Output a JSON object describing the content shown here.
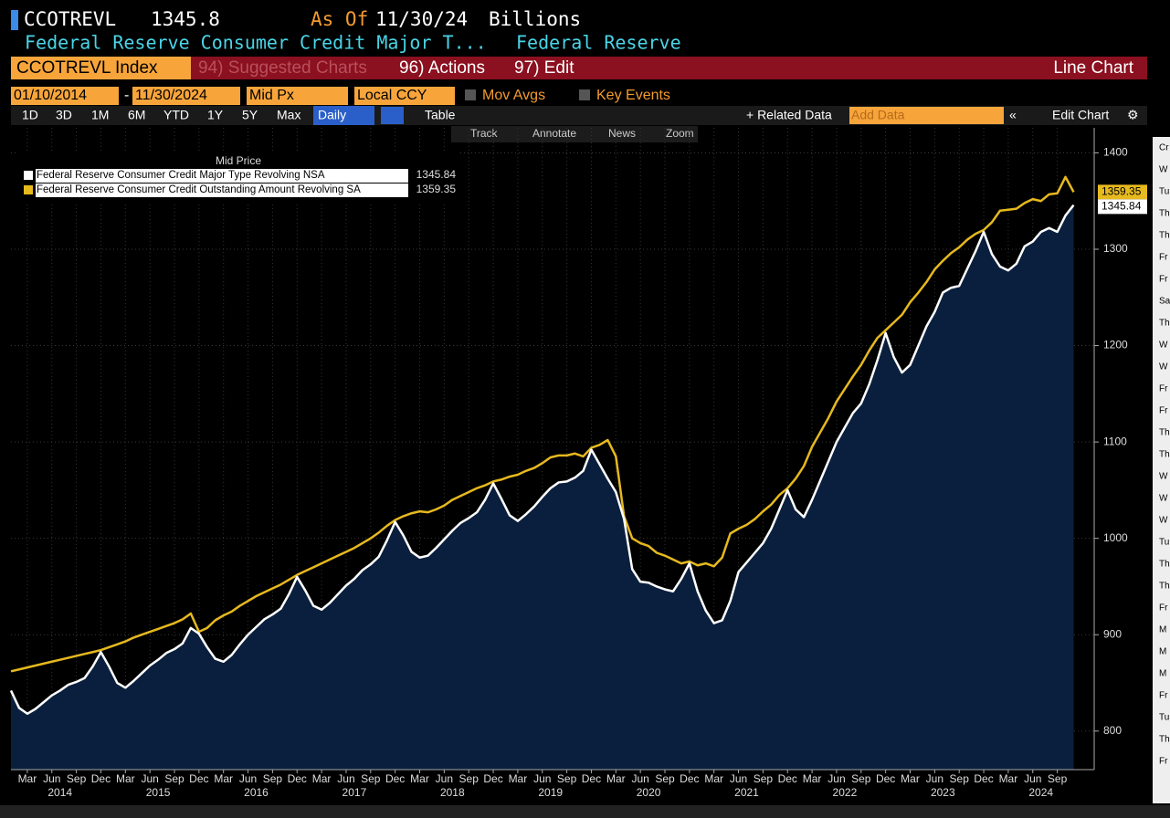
{
  "header": {
    "ticker": "CCOTREVL",
    "price": "1345.8",
    "as_of_label": "As Of",
    "as_of_date": "11/30/24",
    "units": "Billions",
    "name": "Federal Reserve Consumer Credit Major T...",
    "source": "Federal Reserve"
  },
  "menu": {
    "security": "CCOTREVL Index",
    "suggested": "94) Suggested Charts",
    "actions": "96) Actions",
    "edit": "97) Edit",
    "chart_type": "Line Chart"
  },
  "controls": {
    "start_date": "01/10/2014",
    "end_date": "11/30/2024",
    "field": "Mid Px",
    "currency": "Local CCY",
    "mov_avgs": "Mov Avgs",
    "key_events": "Key Events"
  },
  "toolbar": {
    "periods": [
      "1D",
      "3D",
      "1M",
      "6M",
      "YTD",
      "1Y",
      "5Y",
      "Max"
    ],
    "frequency": "Daily",
    "table": "Table",
    "related": "+ Related Data",
    "add_data": "Add Data",
    "edit_chart": "Edit Chart"
  },
  "tools": [
    "Track",
    "Annotate",
    "News",
    "Zoom"
  ],
  "side_panel": [
    "Cr",
    "W",
    "Tu",
    "Th",
    "Th",
    "Fr",
    "Fr",
    "Sa",
    "Th",
    "W",
    "W",
    "Fr",
    "Fr",
    "Th",
    "Th",
    "W",
    "W",
    "W",
    "Tu",
    "Th",
    "Th",
    "Fr",
    "M",
    "M",
    "M",
    "Fr",
    "Tu",
    "Th",
    "Fr"
  ],
  "chart_data": {
    "type": "line",
    "legend_title": "Mid Price",
    "x": [
      "2014-01",
      "2014-02",
      "2014-03",
      "2014-04",
      "2014-05",
      "2014-06",
      "2014-07",
      "2014-08",
      "2014-09",
      "2014-10",
      "2014-11",
      "2014-12",
      "2015-01",
      "2015-02",
      "2015-03",
      "2015-04",
      "2015-05",
      "2015-06",
      "2015-07",
      "2015-08",
      "2015-09",
      "2015-10",
      "2015-11",
      "2015-12",
      "2016-01",
      "2016-02",
      "2016-03",
      "2016-04",
      "2016-05",
      "2016-06",
      "2016-07",
      "2016-08",
      "2016-09",
      "2016-10",
      "2016-11",
      "2016-12",
      "2017-01",
      "2017-02",
      "2017-03",
      "2017-04",
      "2017-05",
      "2017-06",
      "2017-07",
      "2017-08",
      "2017-09",
      "2017-10",
      "2017-11",
      "2017-12",
      "2018-01",
      "2018-02",
      "2018-03",
      "2018-04",
      "2018-05",
      "2018-06",
      "2018-07",
      "2018-08",
      "2018-09",
      "2018-10",
      "2018-11",
      "2018-12",
      "2019-01",
      "2019-02",
      "2019-03",
      "2019-04",
      "2019-05",
      "2019-06",
      "2019-07",
      "2019-08",
      "2019-09",
      "2019-10",
      "2019-11",
      "2019-12",
      "2020-01",
      "2020-02",
      "2020-03",
      "2020-04",
      "2020-05",
      "2020-06",
      "2020-07",
      "2020-08",
      "2020-09",
      "2020-10",
      "2020-11",
      "2020-12",
      "2021-01",
      "2021-02",
      "2021-03",
      "2021-04",
      "2021-05",
      "2021-06",
      "2021-07",
      "2021-08",
      "2021-09",
      "2021-10",
      "2021-11",
      "2021-12",
      "2022-01",
      "2022-02",
      "2022-03",
      "2022-04",
      "2022-05",
      "2022-06",
      "2022-07",
      "2022-08",
      "2022-09",
      "2022-10",
      "2022-11",
      "2022-12",
      "2023-01",
      "2023-02",
      "2023-03",
      "2023-04",
      "2023-05",
      "2023-06",
      "2023-07",
      "2023-08",
      "2023-09",
      "2023-10",
      "2023-11",
      "2023-12",
      "2024-01",
      "2024-02",
      "2024-03",
      "2024-04",
      "2024-05",
      "2024-06",
      "2024-07",
      "2024-08",
      "2024-09",
      "2024-10",
      "2024-11"
    ],
    "series": [
      {
        "name": "Federal Reserve Consumer Credit Major Type Revolving NSA",
        "color": "#ffffff",
        "fill": "#0a1f3d",
        "values": [
          842,
          824,
          818,
          823,
          830,
          837,
          842,
          848,
          851,
          855,
          867,
          882,
          867,
          850,
          845,
          852,
          860,
          868,
          874,
          881,
          885,
          891,
          907,
          901,
          887,
          875,
          872,
          879,
          890,
          900,
          908,
          916,
          921,
          927,
          942,
          960,
          946,
          930,
          926,
          933,
          942,
          951,
          958,
          967,
          973,
          981,
          998,
          1017,
          1003,
          986,
          980,
          982,
          990,
          999,
          1008,
          1016,
          1021,
          1027,
          1040,
          1057,
          1041,
          1024,
          1018,
          1025,
          1033,
          1043,
          1052,
          1058,
          1059,
          1063,
          1070,
          1092,
          1077,
          1062,
          1048,
          1020,
          968,
          955,
          954,
          950,
          947,
          945,
          958,
          974,
          945,
          925,
          912,
          915,
          935,
          965,
          975,
          985,
          995,
          1010,
          1030,
          1050,
          1030,
          1022,
          1040,
          1060,
          1080,
          1100,
          1115,
          1130,
          1140,
          1160,
          1185,
          1213,
          1188,
          1172,
          1180,
          1200,
          1220,
          1235,
          1255,
          1260,
          1262,
          1280,
          1298,
          1318,
          1295,
          1282,
          1278,
          1285,
          1303,
          1308,
          1318,
          1322,
          1318,
          1335,
          1345.84
        ]
      },
      {
        "name": "Federal Reserve Consumer Credit Outstanding Amount Revolving SA",
        "color": "#e6b91e",
        "values": [
          862,
          864,
          866,
          868,
          870,
          872,
          874,
          876,
          878,
          880,
          882,
          884,
          887,
          890,
          893,
          897,
          900,
          903,
          906,
          909,
          912,
          916,
          922,
          903,
          907,
          915,
          920,
          924,
          930,
          935,
          940,
          944,
          948,
          952,
          957,
          962,
          966,
          970,
          974,
          978,
          982,
          986,
          990,
          995,
          1000,
          1006,
          1013,
          1019,
          1023,
          1026,
          1028,
          1027,
          1030,
          1034,
          1040,
          1044,
          1048,
          1052,
          1055,
          1059,
          1061,
          1064,
          1066,
          1070,
          1073,
          1078,
          1084,
          1086,
          1086,
          1088,
          1085,
          1094,
          1097,
          1102,
          1085,
          1023,
          1000,
          995,
          992,
          985,
          982,
          978,
          974,
          976,
          972,
          974,
          971,
          980,
          1005,
          1010,
          1014,
          1020,
          1028,
          1035,
          1045,
          1052,
          1062,
          1075,
          1095,
          1110,
          1125,
          1142,
          1155,
          1168,
          1180,
          1195,
          1208,
          1216,
          1224,
          1232,
          1245,
          1255,
          1266,
          1279,
          1288,
          1296,
          1302,
          1310,
          1316,
          1320,
          1328,
          1340,
          1341,
          1342,
          1348,
          1352,
          1350,
          1357,
          1358,
          1375,
          1359.35
        ]
      }
    ],
    "xticks": [
      {
        "value": "2014-03",
        "label": "Mar"
      },
      {
        "value": "2014-06",
        "label": "Jun"
      },
      {
        "value": "2014-09",
        "label": "Sep"
      },
      {
        "value": "2014-12",
        "label": "Dec"
      },
      {
        "value": "2015-03",
        "label": "Mar"
      },
      {
        "value": "2015-06",
        "label": "Jun"
      },
      {
        "value": "2015-09",
        "label": "Sep"
      },
      {
        "value": "2015-12",
        "label": "Dec"
      },
      {
        "value": "2016-03",
        "label": "Mar"
      },
      {
        "value": "2016-06",
        "label": "Jun"
      },
      {
        "value": "2016-09",
        "label": "Sep"
      },
      {
        "value": "2016-12",
        "label": "Dec"
      },
      {
        "value": "2017-03",
        "label": "Mar"
      },
      {
        "value": "2017-06",
        "label": "Jun"
      },
      {
        "value": "2017-09",
        "label": "Sep"
      },
      {
        "value": "2017-12",
        "label": "Dec"
      },
      {
        "value": "2018-03",
        "label": "Mar"
      },
      {
        "value": "2018-06",
        "label": "Jun"
      },
      {
        "value": "2018-09",
        "label": "Sep"
      },
      {
        "value": "2018-12",
        "label": "Dec"
      },
      {
        "value": "2019-03",
        "label": "Mar"
      },
      {
        "value": "2019-06",
        "label": "Jun"
      },
      {
        "value": "2019-09",
        "label": "Sep"
      },
      {
        "value": "2019-12",
        "label": "Dec"
      },
      {
        "value": "2020-03",
        "label": "Mar"
      },
      {
        "value": "2020-06",
        "label": "Jun"
      },
      {
        "value": "2020-09",
        "label": "Sep"
      },
      {
        "value": "2020-12",
        "label": "Dec"
      },
      {
        "value": "2021-03",
        "label": "Mar"
      },
      {
        "value": "2021-06",
        "label": "Jun"
      },
      {
        "value": "2021-09",
        "label": "Sep"
      },
      {
        "value": "2021-12",
        "label": "Dec"
      },
      {
        "value": "2022-03",
        "label": "Mar"
      },
      {
        "value": "2022-06",
        "label": "Jun"
      },
      {
        "value": "2022-09",
        "label": "Sep"
      },
      {
        "value": "2022-12",
        "label": "Dec"
      },
      {
        "value": "2023-03",
        "label": "Mar"
      },
      {
        "value": "2023-06",
        "label": "Jun"
      },
      {
        "value": "2023-09",
        "label": "Sep"
      },
      {
        "value": "2023-12",
        "label": "Dec"
      },
      {
        "value": "2024-03",
        "label": "Mar"
      },
      {
        "value": "2024-06",
        "label": "Jun"
      },
      {
        "value": "2024-09",
        "label": "Sep"
      }
    ],
    "years": [
      2014,
      2015,
      2016,
      2017,
      2018,
      2019,
      2020,
      2021,
      2022,
      2023,
      2024
    ],
    "ylim": [
      760,
      1426
    ],
    "yticks": [
      800,
      900,
      1000,
      1100,
      1200,
      1300,
      1400
    ],
    "grid": true,
    "legend": "upper left"
  }
}
